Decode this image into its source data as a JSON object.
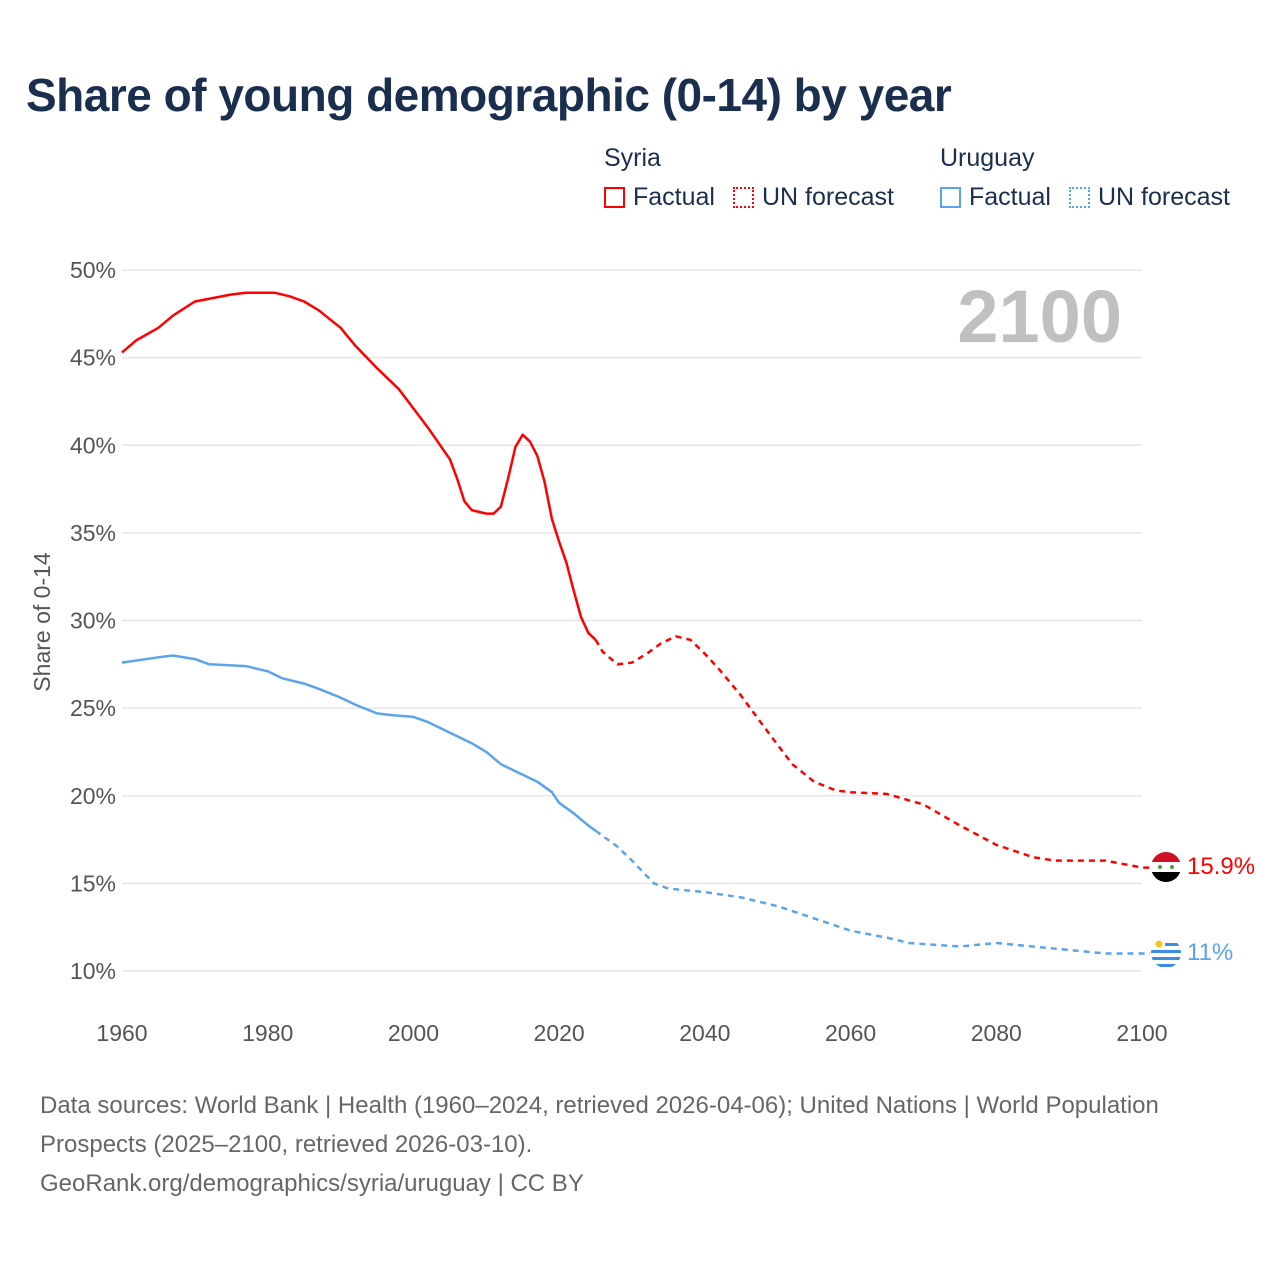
{
  "title": "Share of young demographic (0-14) by year",
  "legend": {
    "groups": [
      {
        "country": "Syria",
        "factual": "Factual",
        "forecast": "UN forecast",
        "color": "#ff0000"
      },
      {
        "country": "Uruguay",
        "factual": "Factual",
        "forecast": "UN forecast",
        "color": "#5ba4ea"
      }
    ]
  },
  "year_label": "2100",
  "end_labels": {
    "syria": "15.9%",
    "uruguay": "11%"
  },
  "source": {
    "line1": "Data sources: World Bank | Health (1960–2024, retrieved 2026-04-06); United Nations | World Population Prospects (2025–2100, retrieved 2026-03-10).",
    "line2": "GeoRank.org/demographics/syria/uruguay | CC BY"
  },
  "chart_data": {
    "type": "line",
    "title": "Share of young demographic (0-14) by year",
    "xlabel": "",
    "ylabel": "Share of 0-14",
    "xlim": [
      1960,
      2100
    ],
    "ylim": [
      10,
      50
    ],
    "xticks": [
      1960,
      1980,
      2000,
      2020,
      2040,
      2060,
      2080,
      2100
    ],
    "xtick_labels": [
      "1960",
      "1980",
      "2000",
      "2020",
      "2040",
      "2060",
      "2080",
      "2100"
    ],
    "yticks": [
      10,
      15,
      20,
      25,
      30,
      35,
      40,
      45,
      50
    ],
    "ytick_labels": [
      "10%",
      "15%",
      "20%",
      "25%",
      "30%",
      "35%",
      "40%",
      "45%",
      "50%"
    ],
    "grid": true,
    "legend_position": "top-right",
    "factual_end_year": 2025,
    "series": [
      {
        "name": "Syria",
        "color": "#ff0000",
        "x": [
          1960,
          1962,
          1965,
          1967,
          1970,
          1975,
          1977,
          1981,
          1983,
          1985,
          1987,
          1990,
          1992,
          1995,
          1998,
          2000,
          2002,
          2005,
          2006,
          2007,
          2008,
          2010,
          2011,
          2012,
          2013,
          2014,
          2015,
          2016,
          2017,
          2018,
          2019,
          2020,
          2021,
          2022,
          2023,
          2024,
          2025,
          2026,
          2028,
          2030,
          2032,
          2034,
          2036,
          2038,
          2040,
          2042,
          2045,
          2048,
          2050,
          2052,
          2055,
          2058,
          2060,
          2065,
          2070,
          2075,
          2080,
          2085,
          2088,
          2095,
          2100
        ],
        "y": [
          45.3,
          46.0,
          46.7,
          47.4,
          48.2,
          48.6,
          48.7,
          48.7,
          48.5,
          48.2,
          47.7,
          46.7,
          45.7,
          44.4,
          43.2,
          42.1,
          41.0,
          39.2,
          38.1,
          36.8,
          36.3,
          36.1,
          36.1,
          36.5,
          38.1,
          39.9,
          40.6,
          40.2,
          39.4,
          37.9,
          35.8,
          34.5,
          33.3,
          31.7,
          30.2,
          29.3,
          28.9,
          28.2,
          27.5,
          27.6,
          28.1,
          28.7,
          29.1,
          28.9,
          28.1,
          27.2,
          25.7,
          24.0,
          22.9,
          21.8,
          20.8,
          20.3,
          20.2,
          20.1,
          19.5,
          18.3,
          17.2,
          16.5,
          16.3,
          16.3,
          15.9
        ]
      },
      {
        "name": "Uruguay",
        "color": "#5ba4ea",
        "x": [
          1960,
          1965,
          1967,
          1970,
          1972,
          1977,
          1980,
          1982,
          1985,
          1987,
          1990,
          1992,
          1995,
          1997,
          2000,
          2002,
          2005,
          2008,
          2010,
          2012,
          2015,
          2017,
          2019,
          2020,
          2022,
          2024,
          2025,
          2028,
          2030,
          2033,
          2035,
          2040,
          2045,
          2050,
          2055,
          2060,
          2065,
          2068,
          2075,
          2080,
          2085,
          2090,
          2095,
          2100
        ],
        "y": [
          27.6,
          27.9,
          28.0,
          27.8,
          27.5,
          27.4,
          27.1,
          26.7,
          26.4,
          26.1,
          25.6,
          25.2,
          24.7,
          24.6,
          24.5,
          24.2,
          23.6,
          23.0,
          22.5,
          21.8,
          21.2,
          20.8,
          20.2,
          19.6,
          19.0,
          18.3,
          18.0,
          17.1,
          16.3,
          15.0,
          14.7,
          14.5,
          14.2,
          13.7,
          13.0,
          12.3,
          11.9,
          11.6,
          11.4,
          11.6,
          11.4,
          11.2,
          11.0,
          11.0
        ]
      }
    ]
  }
}
